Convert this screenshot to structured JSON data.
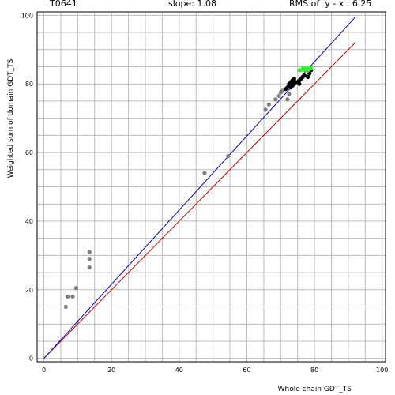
{
  "header": {
    "target": "T0641",
    "slope": "slope: 1.08",
    "rms": "RMS of  y - x : 6.25"
  },
  "chart_data": {
    "type": "scatter",
    "xlabel": "Whole chain GDT_TS",
    "ylabel": "Weighted sum of domain GDT_TS",
    "xlim": [
      -2,
      101
    ],
    "ylim": [
      -1,
      101
    ],
    "xticks": [
      0,
      20,
      40,
      60,
      80,
      100
    ],
    "yticks": [
      0,
      20,
      40,
      60,
      80,
      100
    ],
    "grid": true,
    "lines": [
      {
        "name": "y = x",
        "color": "#cc0000",
        "x": [
          0,
          92
        ],
        "y": [
          0,
          92
        ]
      },
      {
        "name": "fit",
        "color": "#0000cc",
        "x": [
          0,
          92
        ],
        "y": [
          0,
          99.4
        ]
      }
    ],
    "series": [
      {
        "color": "#808080",
        "points": [
          [
            6.5,
            15
          ],
          [
            7,
            18
          ],
          [
            8.5,
            18
          ],
          [
            9.5,
            20.5
          ],
          [
            13.5,
            26.5
          ],
          [
            13.5,
            29
          ],
          [
            13.5,
            31
          ],
          [
            47.5,
            54
          ],
          [
            54.5,
            59
          ],
          [
            65.5,
            72.5
          ],
          [
            66.5,
            74
          ],
          [
            68.5,
            75.5
          ],
          [
            69.5,
            76.5
          ],
          [
            70,
            77.5
          ],
          [
            70.5,
            78
          ],
          [
            72,
            75.5
          ],
          [
            72.5,
            77
          ]
        ]
      },
      {
        "color": "#000000",
        "points": [
          [
            71.5,
            78.5
          ],
          [
            72,
            79
          ],
          [
            72.5,
            79.5
          ],
          [
            72.5,
            80
          ],
          [
            73,
            79
          ],
          [
            73,
            80.5
          ],
          [
            73.5,
            79.5
          ],
          [
            73.5,
            81
          ],
          [
            74,
            80
          ],
          [
            74,
            81.5
          ],
          [
            74.5,
            80.5
          ],
          [
            75.5,
            80
          ],
          [
            75.5,
            81
          ],
          [
            76,
            81.5
          ],
          [
            76.5,
            82
          ],
          [
            77,
            82.5
          ],
          [
            78,
            82
          ],
          [
            78.5,
            83
          ],
          [
            79,
            84
          ]
        ]
      },
      {
        "color": "#33ee33",
        "points": [
          [
            75.5,
            84
          ],
          [
            76,
            84
          ],
          [
            76.5,
            84.5
          ],
          [
            77,
            84
          ],
          [
            77.5,
            84.5
          ],
          [
            78,
            84
          ],
          [
            78.5,
            84.5
          ],
          [
            79,
            84.5
          ]
        ]
      }
    ]
  }
}
